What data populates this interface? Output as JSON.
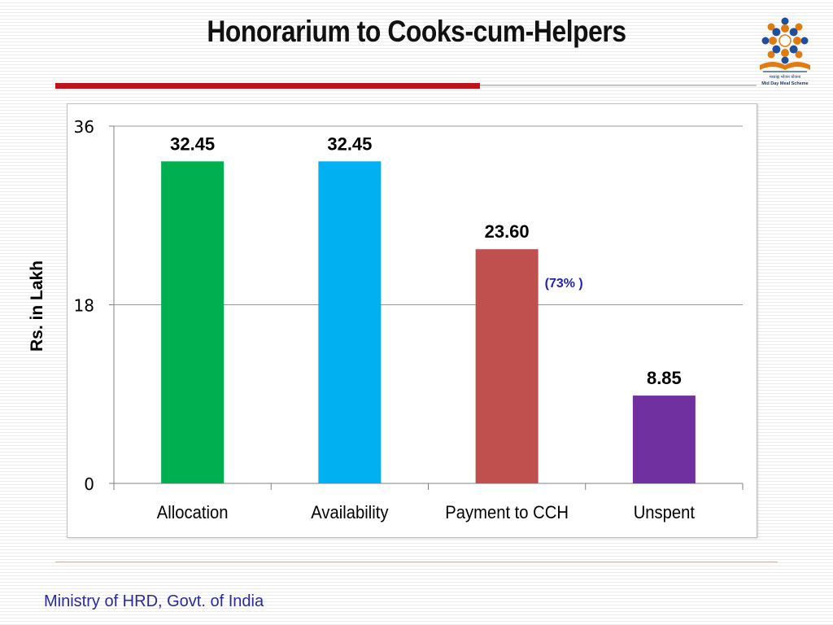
{
  "slide": {
    "title": "Honorarium to Cooks-cum-Helpers",
    "footer": "Ministry of HRD, Govt. of India",
    "logo_text": "मध्याह्न भोजन योजना Mid Day Meal Scheme",
    "logo_icon": "mid-day-meal-logo"
  },
  "chart_data": {
    "type": "bar",
    "title": "",
    "xlabel": "",
    "ylabel": "Rs. in Lakh",
    "ylim": [
      0,
      36
    ],
    "yticks": [
      0,
      18,
      36
    ],
    "grid": true,
    "legend": "none",
    "categories": [
      "Allocation",
      "Availability",
      "Payment to CCH",
      "Unspent"
    ],
    "values": [
      32.45,
      32.45,
      23.6,
      8.85
    ],
    "data_labels": [
      "32.45",
      "32.45",
      "23.60",
      "8.85"
    ],
    "colors": [
      "#00b050",
      "#00b0f0",
      "#c0504d",
      "#7030a0"
    ],
    "annotations": [
      {
        "category": "Payment to CCH",
        "text": "(73% )",
        "color": "#1f1fbf"
      }
    ]
  }
}
